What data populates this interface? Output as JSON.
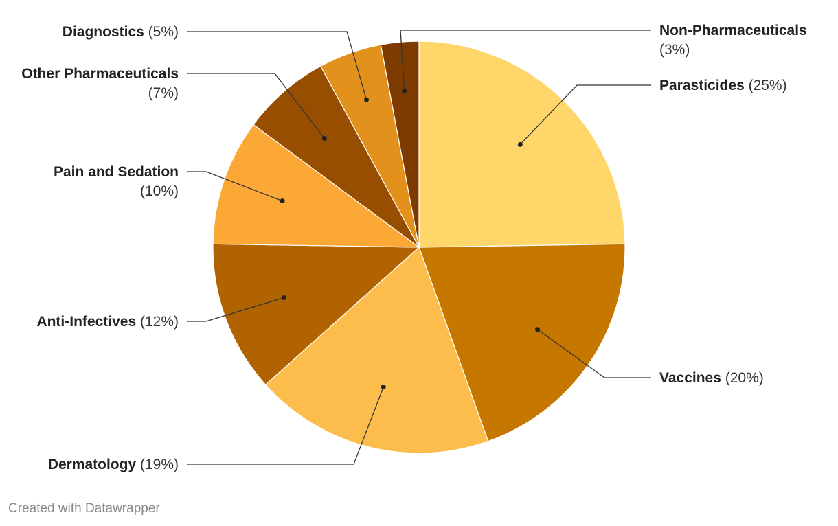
{
  "chart_data": {
    "type": "pie",
    "title": "",
    "slices": [
      {
        "label": "Parasticides",
        "value": 25,
        "color": "#FED669",
        "side": "right"
      },
      {
        "label": "Vaccines",
        "value": 20,
        "color": "#C67700",
        "side": "right"
      },
      {
        "label": "Dermatology",
        "value": 19,
        "color": "#FDBD4D",
        "side": "left"
      },
      {
        "label": "Anti-Infectives",
        "value": 12,
        "color": "#B06300",
        "side": "left"
      },
      {
        "label": "Pain and Sedation",
        "value": 10,
        "color": "#FCA836",
        "side": "left"
      },
      {
        "label": "Other Pharmaceuticals",
        "value": 7,
        "color": "#974E00",
        "side": "left"
      },
      {
        "label": "Diagnostics",
        "value": 5,
        "color": "#E2921C",
        "side": "left"
      },
      {
        "label": "Non-Pharmaceuticals",
        "value": 3,
        "color": "#7E3B00",
        "side": "right"
      }
    ],
    "legend": "none (direct labels with leader lines)"
  },
  "footer": {
    "credit": "Created with Datawrapper"
  }
}
